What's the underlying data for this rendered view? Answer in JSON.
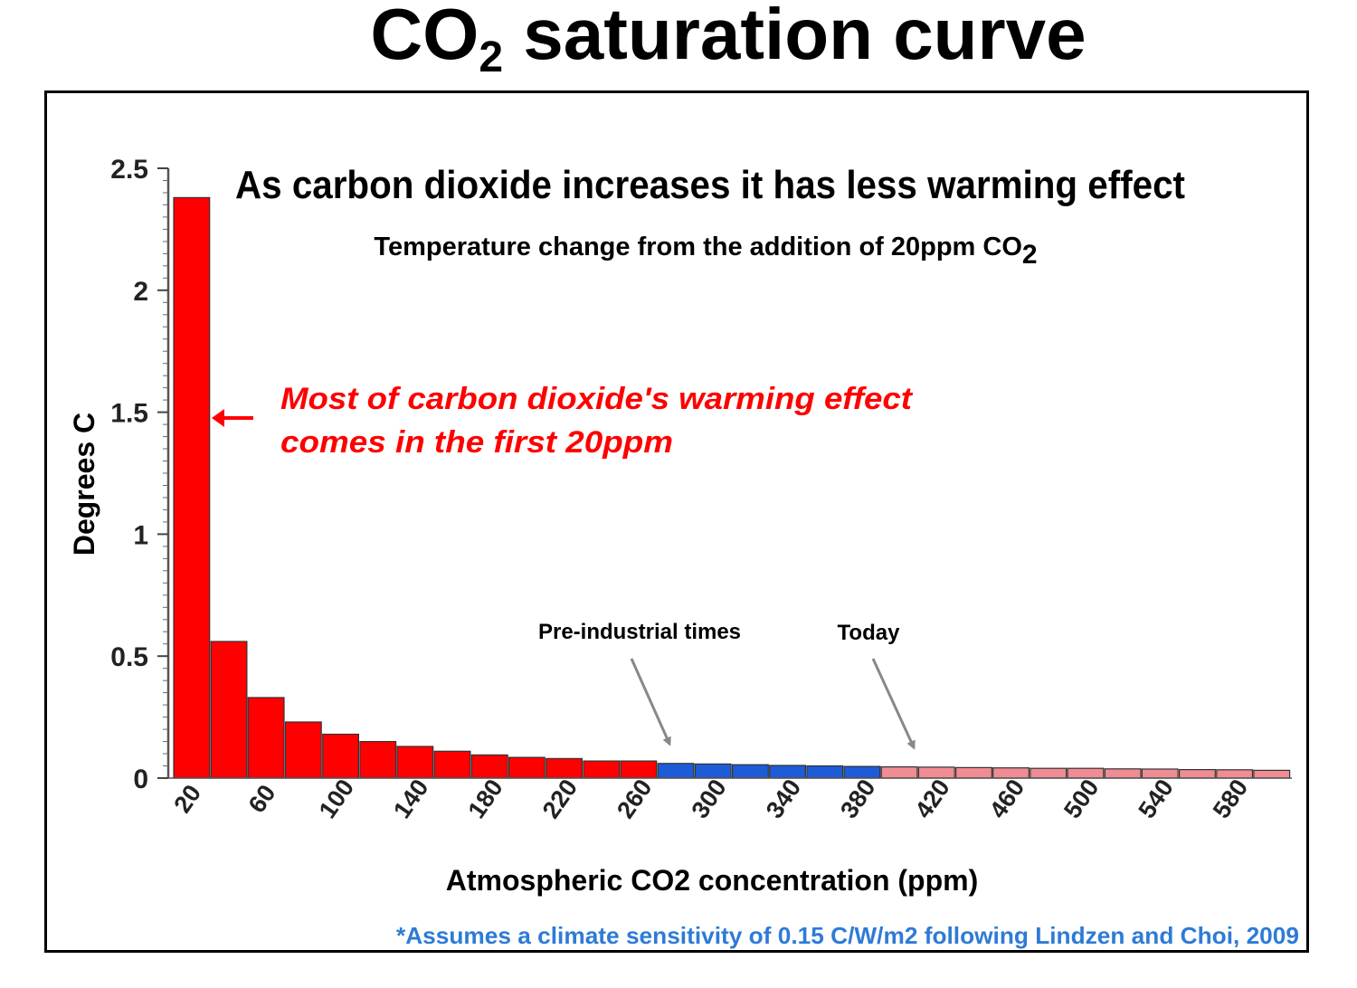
{
  "title": {
    "main": "CO",
    "sub": "2",
    "rest": " saturation curve"
  },
  "chart_data": {
    "type": "bar",
    "title": "As carbon dioxide increases it has less warming effect",
    "subtitle": {
      "text": "Temperature change from the addition of 20ppm CO",
      "sub": "2"
    },
    "xlabel": "Atmospheric CO2 concentration (ppm)",
    "ylabel": "Degrees C",
    "ylim": [
      0,
      2.5
    ],
    "yticks": [
      "0",
      "0.5",
      "1",
      "1.5",
      "2",
      "2.5"
    ],
    "xtick_labels": [
      "20",
      "60",
      "100",
      "140",
      "180",
      "220",
      "260",
      "300",
      "340",
      "380",
      "420",
      "460",
      "500",
      "540",
      "580"
    ],
    "categories": [
      20,
      40,
      60,
      80,
      100,
      120,
      140,
      160,
      180,
      200,
      220,
      240,
      260,
      280,
      300,
      320,
      340,
      360,
      380,
      400,
      420,
      440,
      460,
      480,
      500,
      520,
      540,
      560,
      580,
      600
    ],
    "values": [
      2.38,
      0.56,
      0.33,
      0.23,
      0.18,
      0.15,
      0.13,
      0.11,
      0.095,
      0.085,
      0.08,
      0.07,
      0.07,
      0.06,
      0.058,
      0.055,
      0.052,
      0.05,
      0.048,
      0.046,
      0.045,
      0.043,
      0.042,
      0.04,
      0.04,
      0.038,
      0.037,
      0.035,
      0.034,
      0.032
    ],
    "bar_colors": [
      "#ff0000",
      "#ff0000",
      "#ff0000",
      "#ff0000",
      "#ff0000",
      "#ff0000",
      "#ff0000",
      "#ff0000",
      "#ff0000",
      "#ff0000",
      "#ff0000",
      "#ff0000",
      "#ff0000",
      "#1e5bd6",
      "#1e5bd6",
      "#1e5bd6",
      "#1e5bd6",
      "#1e5bd6",
      "#1e5bd6",
      "#f08c93",
      "#f08c93",
      "#f08c93",
      "#f08c93",
      "#f08c93",
      "#f08c93",
      "#f08c93",
      "#f08c93",
      "#f08c93",
      "#f08c93",
      "#f08c93"
    ],
    "annotations": {
      "most_effect_line1": "Most of carbon dioxide's warming effect",
      "most_effect_line2": "comes in the first 20ppm",
      "preindustrial": "Pre-industrial times",
      "today": "Today"
    },
    "footnote": "*Assumes a climate sensitivity of 0.15 C/W/m2 following Lindzen and Choi, 2009",
    "colors": {
      "red": "#ff0000",
      "blue": "#1e5bd6",
      "pink": "#f08c93",
      "footnote": "#2e7bd6",
      "arrow": "#888888"
    },
    "grid": false
  }
}
